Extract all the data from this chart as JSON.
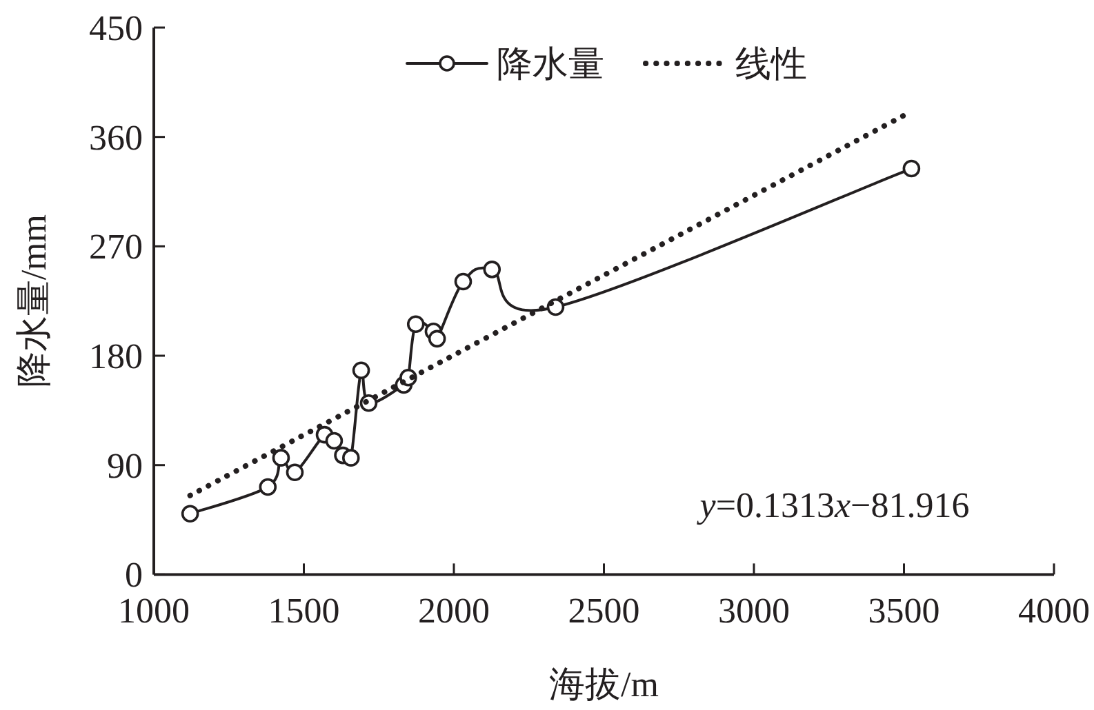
{
  "chart_data": {
    "type": "line",
    "xlabel": "海拔/m",
    "ylabel": "降水量/mm",
    "xlim": [
      1000,
      4000
    ],
    "xticks": [
      1000,
      1500,
      2000,
      2500,
      3000,
      3500,
      4000
    ],
    "ylim": [
      0,
      450
    ],
    "yticks": [
      0,
      90,
      180,
      270,
      360,
      450
    ],
    "grid": false,
    "legend": "top",
    "series": [
      {
        "name": "降水量",
        "color": "#231f20",
        "marker": "circle",
        "line_style": "solid",
        "x": [
          1121,
          1380,
          1424,
          1470,
          1569,
          1601,
          1630,
          1657,
          1691,
          1716,
          1833,
          1848,
          1873,
          1932,
          1944,
          2031,
          2127,
          2339,
          3525
        ],
        "values": [
          50,
          72,
          96,
          84,
          115,
          110,
          98,
          96,
          168,
          141,
          156,
          162,
          206,
          200,
          194,
          241,
          251,
          220,
          334
        ]
      },
      {
        "name": "线性",
        "color": "#231f20",
        "marker": "none",
        "line_style": "dotted",
        "x": [
          1121,
          3525
        ],
        "values": [
          65,
          381
        ]
      }
    ],
    "annotations": [
      "y=0.1313x−81.916"
    ]
  }
}
